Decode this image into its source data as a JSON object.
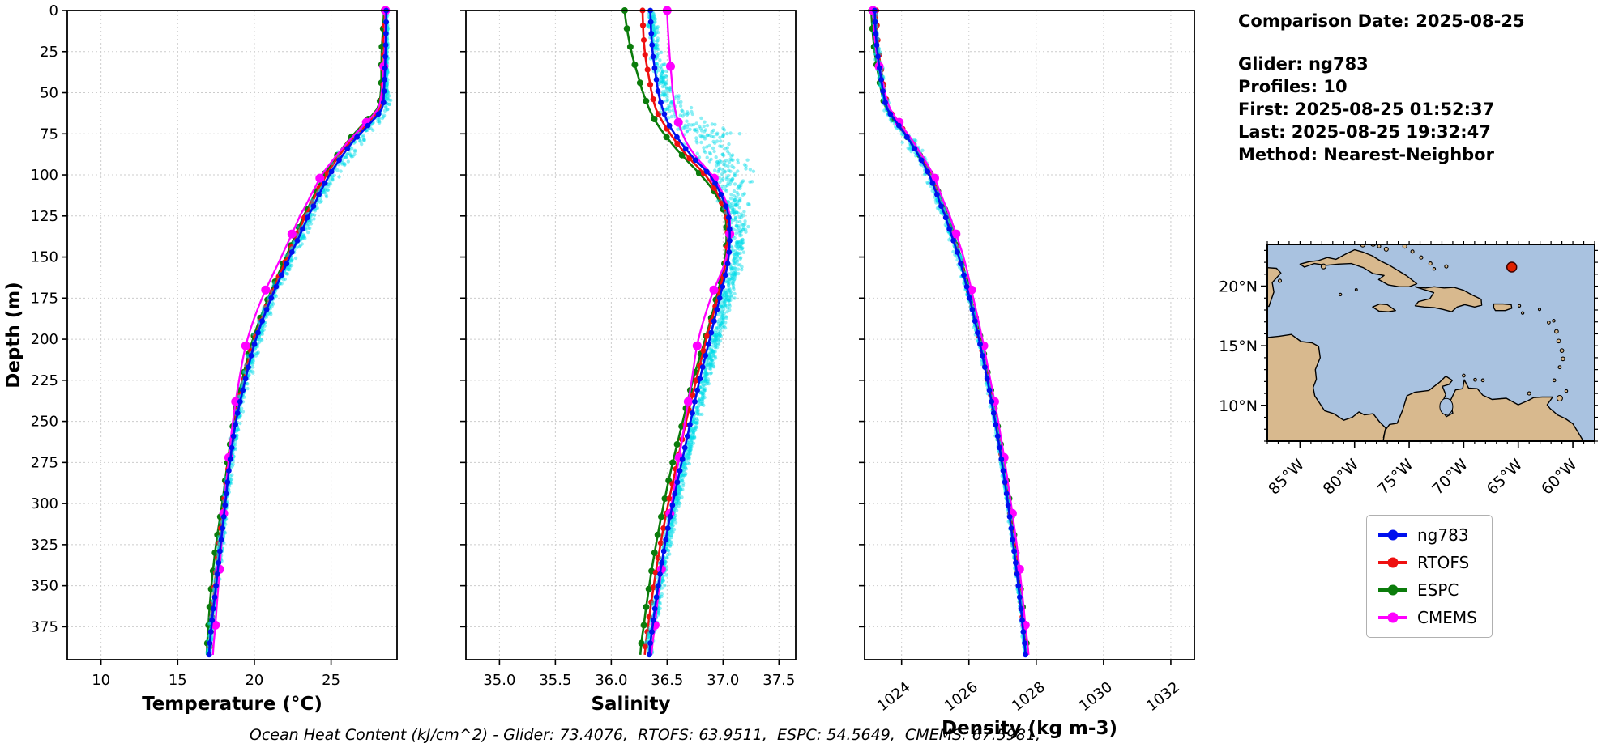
{
  "info_panel": {
    "comparison_date": "Comparison Date: 2025-08-25",
    "glider": "Glider: ng783",
    "profiles": "Profiles: 10",
    "first": "First: 2025-08-25 01:52:37",
    "last": "Last: 2025-08-25 19:32:47",
    "method": "Method: Nearest-Neighbor"
  },
  "caption": "Ocean Heat Content (kJ/cm^2) - Glider: 73.4076,  RTOFS: 63.9511,  ESPC: 54.5649,  CMEMS: 67.5981,",
  "legend": {
    "items": [
      {
        "label": "ng783",
        "color": "#0010ee"
      },
      {
        "label": "RTOFS",
        "color": "#ee1010"
      },
      {
        "label": "ESPC",
        "color": "#0b7c0b"
      },
      {
        "label": "CMEMS",
        "color": "#ff00ff"
      }
    ]
  },
  "chart_data": [
    {
      "type": "line",
      "name": "temperature",
      "xlabel": "Temperature (°C)",
      "ylabel": "Depth (m)",
      "xlim": [
        7.8,
        29.3
      ],
      "ylim": [
        0,
        395
      ],
      "y_inverted": true,
      "grid": true,
      "xticks": {
        "values": [
          10,
          15,
          20,
          25
        ],
        "labels": [
          "10",
          "15",
          "20",
          "25"
        ]
      },
      "yticks": {
        "values": [
          0,
          25,
          50,
          75,
          100,
          125,
          150,
          175,
          200,
          225,
          250,
          275,
          300,
          325,
          350,
          375
        ],
        "labels": [
          "0",
          "25",
          "50",
          "75",
          "100",
          "125",
          "150",
          "175",
          "200",
          "225",
          "250",
          "275",
          "300",
          "325",
          "350",
          "375"
        ]
      },
      "depths": [
        0,
        25,
        50,
        60,
        70,
        80,
        90,
        100,
        110,
        125,
        150,
        175,
        200,
        225,
        250,
        275,
        300,
        325,
        350,
        375,
        392
      ],
      "series": [
        {
          "name": "ng783",
          "color": "#0010ee",
          "values": [
            28.6,
            28.55,
            28.45,
            28.3,
            27.4,
            26.4,
            25.6,
            24.9,
            24.3,
            23.5,
            22.3,
            21.1,
            20.1,
            19.4,
            18.8,
            18.4,
            18.1,
            17.8,
            17.5,
            17.2,
            17.05
          ]
        },
        {
          "name": "RTOFS",
          "color": "#ee1010",
          "values": [
            28.5,
            28.45,
            28.38,
            28.15,
            27.2,
            26.2,
            25.4,
            24.7,
            24.1,
            23.3,
            22.15,
            21.0,
            20.0,
            19.3,
            18.75,
            18.35,
            18.0,
            17.7,
            17.4,
            17.2,
            17.1
          ]
        },
        {
          "name": "ESPC",
          "color": "#0b7c0b",
          "values": [
            28.45,
            28.3,
            28.25,
            28.0,
            27.0,
            26.05,
            25.25,
            24.55,
            24.0,
            23.2,
            22.05,
            20.9,
            19.9,
            19.2,
            18.65,
            18.25,
            17.9,
            17.5,
            17.2,
            17.0,
            16.9
          ]
        },
        {
          "name": "CMEMS",
          "color": "#ff00ff",
          "values": [
            28.55,
            28.5,
            28.3,
            28.05,
            27.1,
            26.1,
            25.2,
            24.4,
            23.8,
            22.95,
            21.75,
            20.5,
            19.55,
            19.0,
            18.6,
            18.3,
            18.05,
            17.85,
            17.65,
            17.45,
            17.3
          ]
        }
      ],
      "scatter": {
        "name": "glider raw profiles",
        "color": "#00dce8",
        "count": 1100,
        "spread": [
          [
            0,
            0.12
          ],
          [
            50,
            0.18
          ],
          [
            65,
            0.7
          ],
          [
            85,
            0.95
          ],
          [
            110,
            0.6
          ],
          [
            150,
            0.5
          ],
          [
            200,
            0.42
          ],
          [
            250,
            0.35
          ],
          [
            300,
            0.27
          ],
          [
            392,
            0.22
          ]
        ],
        "bias": [
          [
            0,
            0
          ],
          [
            60,
            0.2
          ],
          [
            90,
            0.3
          ],
          [
            120,
            0.1
          ],
          [
            392,
            0
          ]
        ]
      }
    },
    {
      "type": "line",
      "name": "salinity",
      "xlabel": "Salinity",
      "ylabel": "",
      "xlim": [
        34.7,
        37.65
      ],
      "ylim": [
        0,
        395
      ],
      "y_inverted": true,
      "grid": true,
      "xticks": {
        "values": [
          35.0,
          35.5,
          36.0,
          36.5,
          37.0,
          37.5
        ],
        "labels": [
          "35.0",
          "35.5",
          "36.0",
          "36.5",
          "37.0",
          "37.5"
        ]
      },
      "yticks": {
        "values": [
          0,
          25,
          50,
          75,
          100,
          125,
          150,
          175,
          200,
          225,
          250,
          275,
          300,
          325,
          350,
          375
        ],
        "labels": [
          "0",
          "25",
          "50",
          "75",
          "100",
          "125",
          "150",
          "175",
          "200",
          "225",
          "250",
          "275",
          "300",
          "325",
          "350",
          "375"
        ]
      },
      "depths": [
        0,
        25,
        50,
        60,
        70,
        80,
        90,
        100,
        110,
        125,
        150,
        175,
        200,
        225,
        250,
        275,
        300,
        325,
        350,
        375,
        392
      ],
      "series": [
        {
          "name": "ng783",
          "color": "#0010ee",
          "values": [
            36.35,
            36.37,
            36.42,
            36.46,
            36.52,
            36.62,
            36.74,
            36.88,
            36.97,
            37.05,
            37.05,
            36.97,
            36.88,
            36.79,
            36.71,
            36.63,
            36.55,
            36.48,
            36.42,
            36.37,
            36.34
          ]
        },
        {
          "name": "RTOFS",
          "color": "#ee1010",
          "values": [
            36.28,
            36.3,
            36.36,
            36.4,
            36.48,
            36.58,
            36.7,
            36.84,
            36.94,
            37.03,
            37.03,
            36.95,
            36.85,
            36.76,
            36.67,
            36.59,
            36.51,
            36.44,
            36.38,
            36.33,
            36.3
          ]
        },
        {
          "name": "ESPC",
          "color": "#0b7c0b",
          "values": [
            36.12,
            36.18,
            36.28,
            36.34,
            36.42,
            36.53,
            36.66,
            36.8,
            36.92,
            37.02,
            37.02,
            36.94,
            36.84,
            36.73,
            36.64,
            36.55,
            36.47,
            36.4,
            36.34,
            36.29,
            36.26
          ]
        },
        {
          "name": "CMEMS",
          "color": "#ff00ff",
          "values": [
            36.5,
            36.52,
            36.55,
            36.57,
            36.61,
            36.67,
            36.77,
            36.9,
            36.99,
            37.06,
            37.03,
            36.89,
            36.78,
            36.72,
            36.66,
            36.6,
            36.54,
            36.48,
            36.43,
            36.39,
            36.36
          ]
        }
      ],
      "scatter": {
        "name": "glider raw profiles",
        "color": "#00dce8",
        "count": 1400,
        "spread": [
          [
            0,
            0.05
          ],
          [
            50,
            0.1
          ],
          [
            65,
            0.3
          ],
          [
            85,
            0.33
          ],
          [
            105,
            0.25
          ],
          [
            130,
            0.12
          ],
          [
            160,
            0.09
          ],
          [
            250,
            0.06
          ],
          [
            392,
            0.05
          ]
        ],
        "bias": [
          [
            0,
            0
          ],
          [
            55,
            0.08
          ],
          [
            75,
            0.28
          ],
          [
            95,
            0.22
          ],
          [
            120,
            0.08
          ],
          [
            392,
            0
          ]
        ]
      }
    },
    {
      "type": "line",
      "name": "density",
      "xlabel": "Density (kg m-3)",
      "ylabel": "",
      "xlim": [
        1022.9,
        1032.7
      ],
      "ylim": [
        0,
        395
      ],
      "y_inverted": true,
      "grid": true,
      "xtick_rotation": -38,
      "xticks": {
        "values": [
          1024,
          1026,
          1028,
          1030,
          1032
        ],
        "labels": [
          "1024",
          "1026",
          "1028",
          "1030",
          "1032"
        ]
      },
      "yticks": {
        "values": [
          0,
          25,
          50,
          75,
          100,
          125,
          150,
          175,
          200,
          225,
          250,
          275,
          300,
          325,
          350,
          375
        ],
        "labels": [
          "0",
          "25",
          "50",
          "75",
          "100",
          "125",
          "150",
          "175",
          "200",
          "225",
          "250",
          "275",
          "300",
          "325",
          "350",
          "375"
        ]
      },
      "depths": [
        0,
        25,
        50,
        60,
        70,
        80,
        90,
        100,
        110,
        125,
        150,
        175,
        200,
        225,
        250,
        275,
        300,
        325,
        350,
        375,
        392
      ],
      "series": [
        {
          "name": "ng783",
          "color": "#0010ee",
          "values": [
            1023.2,
            1023.28,
            1023.45,
            1023.58,
            1023.92,
            1024.26,
            1024.56,
            1024.82,
            1025.02,
            1025.3,
            1025.7,
            1026.02,
            1026.3,
            1026.55,
            1026.78,
            1026.98,
            1027.16,
            1027.32,
            1027.47,
            1027.6,
            1027.68
          ]
        },
        {
          "name": "RTOFS",
          "color": "#ee1010",
          "values": [
            1023.25,
            1023.32,
            1023.5,
            1023.62,
            1023.96,
            1024.3,
            1024.6,
            1024.86,
            1025.06,
            1025.34,
            1025.73,
            1026.04,
            1026.32,
            1026.57,
            1026.8,
            1027.0,
            1027.18,
            1027.34,
            1027.49,
            1027.62,
            1027.7
          ]
        },
        {
          "name": "ESPC",
          "color": "#0b7c0b",
          "values": [
            1023.1,
            1023.2,
            1023.4,
            1023.55,
            1023.9,
            1024.28,
            1024.6,
            1024.88,
            1025.08,
            1025.38,
            1025.76,
            1026.06,
            1026.35,
            1026.6,
            1026.83,
            1027.03,
            1027.22,
            1027.38,
            1027.53,
            1027.65,
            1027.74
          ]
        },
        {
          "name": "CMEMS",
          "color": "#ff00ff",
          "values": [
            1023.15,
            1023.25,
            1023.5,
            1023.66,
            1024.0,
            1024.35,
            1024.66,
            1024.94,
            1025.14,
            1025.44,
            1025.84,
            1026.13,
            1026.4,
            1026.64,
            1026.87,
            1027.07,
            1027.25,
            1027.42,
            1027.56,
            1027.68,
            1027.77
          ]
        }
      ],
      "scatter": {
        "name": "glider raw profiles",
        "color": "#00dce8",
        "count": 1000,
        "spread": [
          [
            0,
            0.08
          ],
          [
            60,
            0.14
          ],
          [
            80,
            0.28
          ],
          [
            100,
            0.24
          ],
          [
            150,
            0.14
          ],
          [
            200,
            0.11
          ],
          [
            300,
            0.08
          ],
          [
            392,
            0.06
          ]
        ],
        "bias": [
          [
            0,
            0
          ],
          [
            392,
            0
          ]
        ]
      }
    },
    {
      "type": "map",
      "name": "location-map",
      "extent": {
        "lon": [
          -88,
          -58
        ],
        "lat": [
          7,
          23.5
        ]
      },
      "xticks": [
        {
          "value": -85,
          "label": "85°W"
        },
        {
          "value": -80,
          "label": "80°W"
        },
        {
          "value": -75,
          "label": "75°W"
        },
        {
          "value": -70,
          "label": "70°W"
        },
        {
          "value": -65,
          "label": "65°W"
        },
        {
          "value": -60,
          "label": "60°W"
        }
      ],
      "yticks": [
        {
          "value": 20,
          "label": "20°N"
        },
        {
          "value": 15,
          "label": "15°N"
        },
        {
          "value": 10,
          "label": "10°N"
        }
      ],
      "marker": {
        "lon": -65.6,
        "lat": 21.6,
        "color": "#e02200"
      },
      "ocean_color": "#a9c2e0",
      "land_color": "#d8b98e"
    }
  ]
}
